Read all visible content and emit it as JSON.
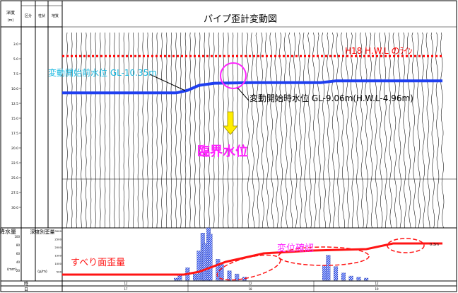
{
  "chart_data": {
    "type": "line",
    "title": "パイプ歪計変動図",
    "header_cells": [
      "深度",
      "(m)",
      "区分",
      "柱状",
      "地質"
    ],
    "depth_ticks": [
      "3.0",
      "5.0",
      "7.5",
      "10.0",
      "12.5",
      "15.0",
      "17.5",
      "20.0",
      "22.5",
      "25.0",
      "27.5",
      "30.0"
    ],
    "hwl_label": "H18 H.W.L のﾗｲﾝ",
    "hwl_depth": 4.1,
    "water_level_series": {
      "x": [
        0,
        0.3,
        0.33,
        0.36,
        0.4,
        0.5,
        0.68,
        0.72,
        1.0
      ],
      "y": [
        10.35,
        10.35,
        9.9,
        9.06,
        8.7,
        8.6,
        8.6,
        8.3,
        8.3
      ]
    },
    "label_before": "変動開始前水位 GL-10.35m",
    "label_start": "変動開始時水位 GL-9.06m(H.W.L-4.96m)",
    "critical_label": "臨界水位",
    "left_lower": {
      "rain_title": "降水量",
      "rain_unit": "(mm)",
      "strain_title": "深度別歪量",
      "strain_unit": "(μ/m)"
    },
    "rain_ticks": [
      "100",
      "80",
      "60",
      "40",
      "20"
    ],
    "strain_ticks": [
      "3000",
      "2500",
      "2000",
      "1500",
      "1000",
      "500"
    ],
    "rainfall_bars": [
      [
        0.3,
        4
      ],
      [
        0.31,
        12
      ],
      [
        0.33,
        24
      ],
      [
        0.35,
        12
      ],
      [
        0.36,
        56
      ],
      [
        0.37,
        90
      ],
      [
        0.375,
        70
      ],
      [
        0.385,
        100
      ],
      [
        0.39,
        88
      ],
      [
        0.41,
        40
      ],
      [
        0.42,
        30
      ],
      [
        0.44,
        18
      ],
      [
        0.46,
        12
      ],
      [
        0.48,
        6
      ],
      [
        0.69,
        28
      ],
      [
        0.7,
        48
      ],
      [
        0.72,
        26
      ],
      [
        0.74,
        14
      ],
      [
        0.76,
        8
      ],
      [
        0.78,
        6
      ],
      [
        0.8,
        4
      ]
    ],
    "slip_strain_series": {
      "x": [
        0,
        0.32,
        0.36,
        0.43,
        0.53,
        0.66,
        0.8,
        0.87,
        1.0
      ],
      "y": [
        8,
        8,
        12,
        26,
        38,
        42,
        44,
        52,
        52
      ]
    },
    "slip_label": "すべり面歪量",
    "confirm_label": "変位確認",
    "strain_end_label": "0.3m",
    "time_label": "時",
    "day_label": "日",
    "day_ticks": [
      "17",
      "18",
      "19"
    ],
    "hour_ticks": [
      "12",
      "12",
      "12"
    ]
  },
  "colors": {
    "blue": "#1f3ff0",
    "red": "#ff1414",
    "hwl": "#ff0000",
    "magenta": "#ff22ff",
    "cyan": "#18b8e0",
    "yellow": "#ffee00",
    "bar": "#3050e8",
    "mark": "#5b8bd0"
  }
}
